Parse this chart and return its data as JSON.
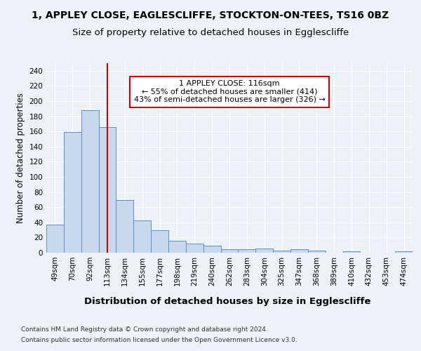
{
  "title_line1": "1, APPLEY CLOSE, EAGLESCLIFFE, STOCKTON-ON-TEES, TS16 0BZ",
  "title_line2": "Size of property relative to detached houses in Egglescliffe",
  "xlabel": "Distribution of detached houses by size in Egglescliffe",
  "ylabel": "Number of detached properties",
  "categories": [
    "49sqm",
    "70sqm",
    "92sqm",
    "113sqm",
    "134sqm",
    "155sqm",
    "177sqm",
    "198sqm",
    "219sqm",
    "240sqm",
    "262sqm",
    "283sqm",
    "304sqm",
    "325sqm",
    "347sqm",
    "368sqm",
    "389sqm",
    "410sqm",
    "432sqm",
    "453sqm",
    "474sqm"
  ],
  "values": [
    37,
    159,
    188,
    166,
    69,
    43,
    30,
    16,
    12,
    9,
    5,
    5,
    6,
    3,
    5,
    3,
    0,
    2,
    0,
    0,
    2
  ],
  "bar_color": "#c9d9ed",
  "bar_edge_color": "#5b8fc9",
  "redline_x": 3,
  "redline_color": "#cc0000",
  "annotation_text": "1 APPLEY CLOSE: 116sqm\n← 55% of detached houses are smaller (414)\n43% of semi-detached houses are larger (326) →",
  "annotation_box_color": "#ffffff",
  "annotation_box_edge": "#cc0000",
  "annotation_fontsize": 8.0,
  "ylim": [
    0,
    250
  ],
  "yticks": [
    0,
    20,
    40,
    60,
    80,
    100,
    120,
    140,
    160,
    180,
    200,
    220,
    240
  ],
  "footnote1": "Contains HM Land Registry data © Crown copyright and database right 2024.",
  "footnote2": "Contains public sector information licensed under the Open Government Licence v3.0.",
  "title_fontsize": 10,
  "subtitle_fontsize": 9.5,
  "xlabel_fontsize": 9.5,
  "ylabel_fontsize": 8.5,
  "tick_fontsize": 7.5,
  "bg_color": "#edf2f9",
  "plot_bg_color": "#edf2f9"
}
